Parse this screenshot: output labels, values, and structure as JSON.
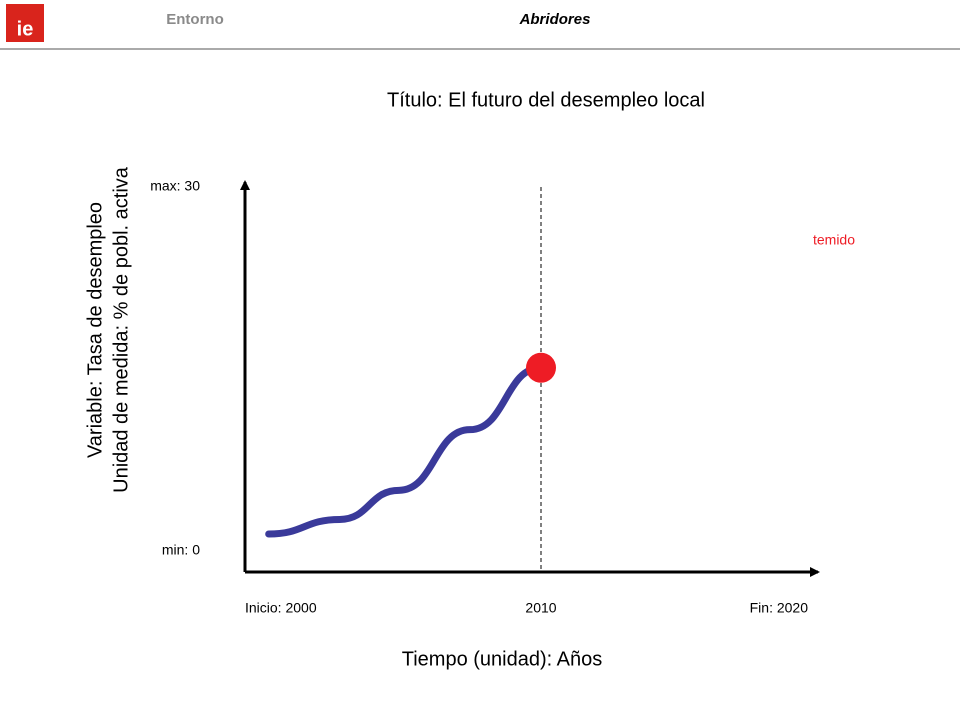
{
  "header": {
    "logo": "ie",
    "section": "Entorno",
    "subsection": "Abridores"
  },
  "chart_data": {
    "type": "line",
    "title": "Título: El futuro del desempleo local",
    "y_label": [
      "Variable: Tasa de desempleo",
      "Unidad de medida: % de pobl. activa"
    ],
    "x_label": "Tiempo (unidad): Años",
    "x": [
      2000.8,
      2003.2,
      2005.2,
      2007.6,
      2010
    ],
    "series": [
      {
        "color": "#3a3a9a",
        "values": [
          1.4,
          2.6,
          5.0,
          10.0,
          15.1
        ]
      }
    ],
    "marker_color": "#ee1c25",
    "xlim": [
      2000,
      2020
    ],
    "ylim": [
      0,
      30
    ],
    "xticks": [
      {
        "value": 2000,
        "label": "Inicio: 2000"
      },
      2010,
      {
        "value": 2020,
        "label": "Fin: 2020"
      }
    ],
    "yticks": [
      {
        "value": 0,
        "label": "min: 0"
      },
      {
        "value": 30,
        "label": "max: 30"
      }
    ],
    "vlines": [
      2010
    ],
    "annotations": [
      {
        "text": "temido",
        "color": "#ee1c25"
      }
    ]
  }
}
